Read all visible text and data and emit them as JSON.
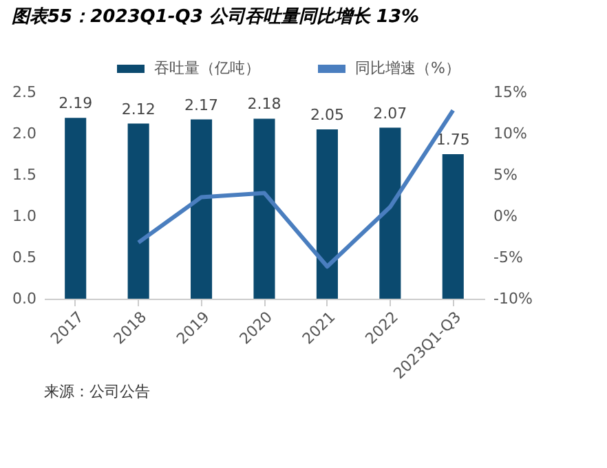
{
  "chart_data": {
    "type": "bar",
    "title": "图表55：2023Q1-Q3 公司吞吐量同比增长 13%",
    "categories": [
      "2017",
      "2018",
      "2019",
      "2020",
      "2021",
      "2022",
      "2023Q1-Q3"
    ],
    "series": [
      {
        "name": "吞吐量（亿吨）",
        "color": "#0b4a6f",
        "values": [
          2.19,
          2.12,
          2.17,
          2.18,
          2.05,
          2.07,
          1.75
        ],
        "value_labels": [
          "2.19",
          "2.12",
          "2.17",
          "2.18",
          "2.05",
          "2.07",
          "1.75"
        ]
      },
      {
        "name": "同比增速（%）",
        "type": "line",
        "axis": "y2",
        "color": "#4a7ebf",
        "values": [
          null,
          -3.2,
          2.3,
          2.8,
          -6.1,
          1.1,
          12.8
        ]
      }
    ],
    "ylim": [
      0,
      2.5
    ],
    "yticks": [
      {
        "value": 0,
        "label": "0.0"
      },
      {
        "value": 0.5,
        "label": "0.5"
      },
      {
        "value": 1,
        "label": "1.0"
      },
      {
        "value": 1.5,
        "label": "1.5"
      },
      {
        "value": 2,
        "label": "2.0"
      },
      2.5
    ],
    "y2lim": [
      -10,
      15
    ],
    "y2ticks": [
      {
        "value": -10,
        "label": "-10%"
      },
      {
        "value": -5,
        "label": "-5%"
      },
      {
        "value": 0,
        "label": "0%"
      },
      {
        "value": 5,
        "label": "5%"
      },
      {
        "value": 10,
        "label": "10%"
      },
      {
        "value": 15,
        "label": "15%"
      }
    ],
    "grid": false,
    "legend": "top",
    "annotations": [
      "来源：公司公告"
    ]
  }
}
